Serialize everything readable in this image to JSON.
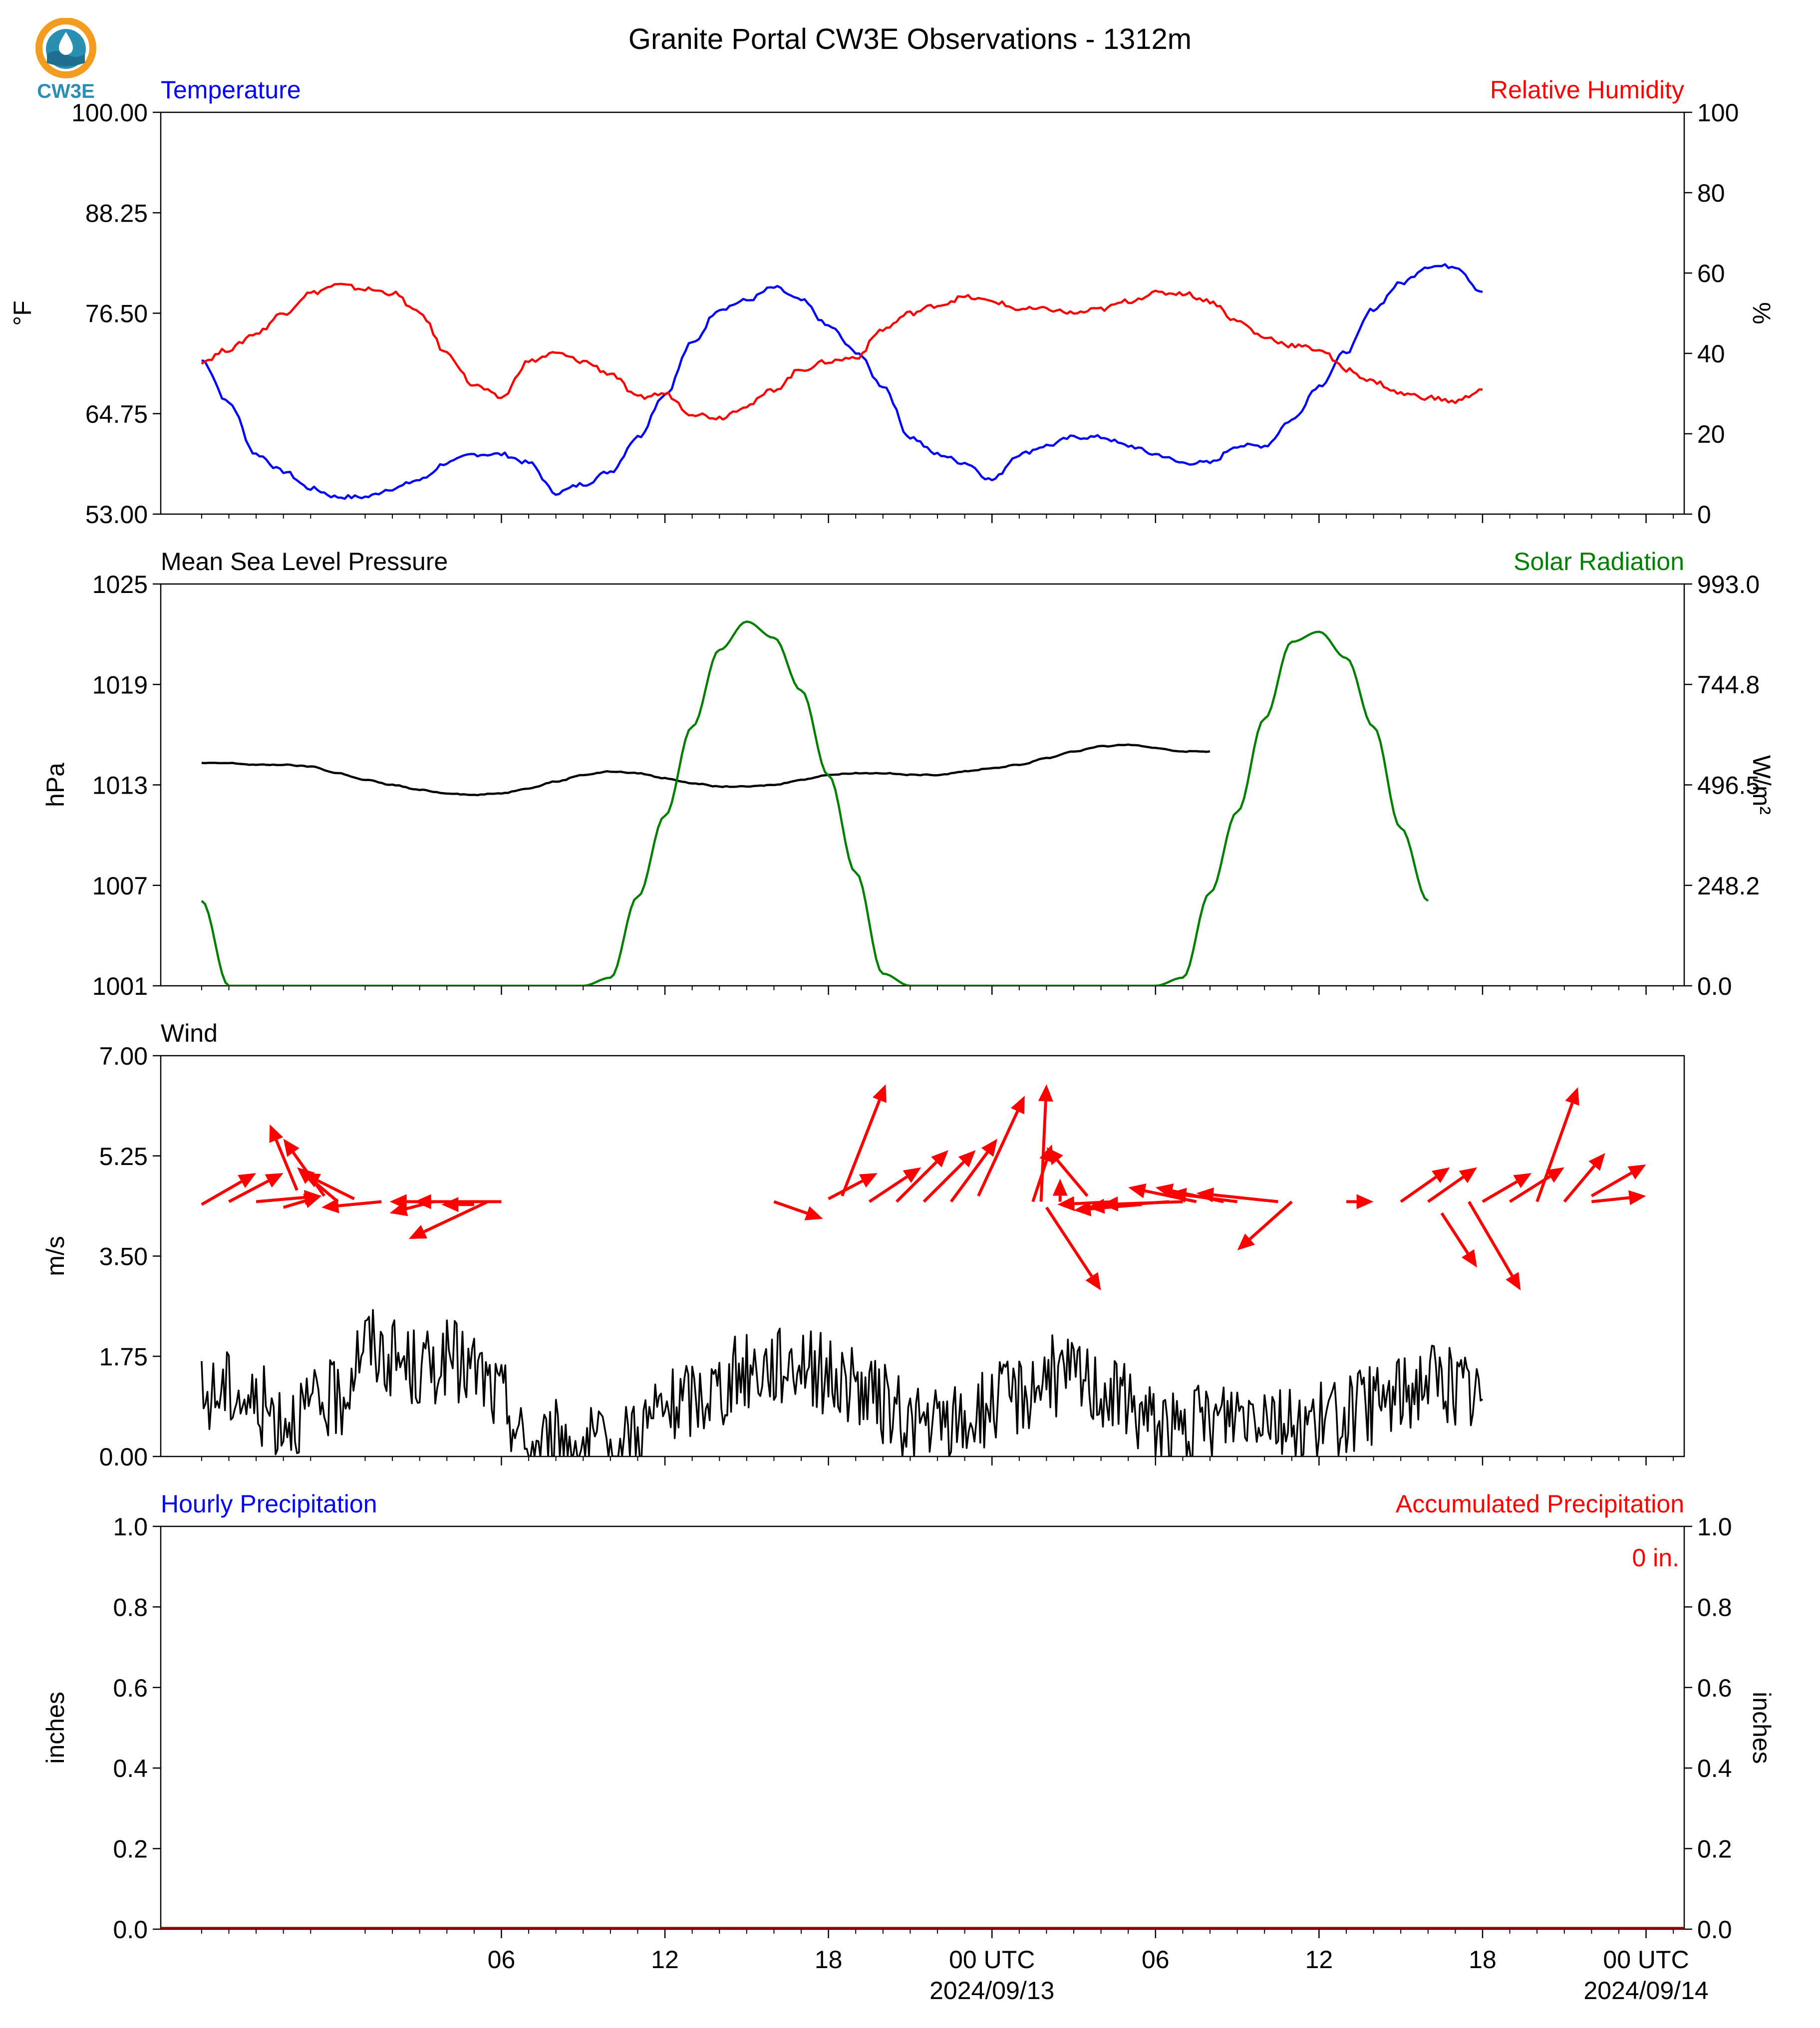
{
  "title": "Granite Portal CW3E Observations - 1312m",
  "logo": {
    "text": "CW3E",
    "colors": {
      "orange": "#f39c1f",
      "teal": "#2b8fb3",
      "dark": "#1f6f8f"
    }
  },
  "colors": {
    "blue": "#0000ff",
    "red": "#ff0000",
    "green": "#008000",
    "black": "#000000"
  },
  "x_axis": {
    "ticks": [
      "06",
      "12",
      "18",
      "00 UTC",
      "06",
      "12",
      "18",
      "00 UTC"
    ],
    "dates": [
      "2024/09/13",
      "2024/09/14"
    ]
  },
  "chart_data": [
    {
      "type": "line",
      "title_left": "Temperature",
      "title_right": "Relative Humidity",
      "ylabel_left": "°F",
      "ylabel_right": "%",
      "ylim_left": [
        53.0,
        100.0
      ],
      "ylim_right": [
        0,
        100
      ],
      "yticks_left": [
        "53.00",
        "64.75",
        "76.50",
        "88.25",
        "100.00"
      ],
      "yticks_right": [
        "0",
        "20",
        "40",
        "60",
        "80",
        "100"
      ],
      "x_hours": [
        -5,
        -4,
        -3,
        -2,
        -1,
        0,
        1,
        2,
        3,
        4,
        5,
        6,
        7,
        8,
        9,
        10,
        11,
        12,
        13,
        14,
        15,
        16,
        17,
        18,
        19,
        20,
        21,
        22,
        23,
        24,
        25,
        26,
        27,
        28,
        29,
        30,
        31,
        32,
        33,
        34,
        35,
        36,
        37,
        38,
        39,
        40,
        41,
        42,
        43,
        44,
        45,
        46,
        47,
        48
      ],
      "series": [
        {
          "name": "Temperature",
          "axis": "left",
          "color": "#0000ff",
          "values": [
            71,
            66,
            60,
            58,
            56,
            55,
            55,
            56,
            57,
            59,
            60,
            60,
            59,
            55.5,
            56.5,
            58,
            62,
            67,
            73,
            77,
            78,
            79.5,
            78,
            75,
            72,
            68,
            62,
            60,
            59,
            57,
            60,
            61,
            62,
            62,
            61,
            60,
            59,
            59,
            61,
            61,
            64,
            68,
            72,
            77,
            80,
            82,
            82,
            79
          ]
        },
        {
          "name": "Relative Humidity",
          "axis": "right",
          "color": "#ff0000",
          "values": [
            38,
            41,
            45,
            50,
            55,
            57,
            56,
            55,
            50,
            40,
            32,
            29,
            38,
            40,
            38,
            35,
            29,
            30,
            25,
            24,
            27,
            31,
            36,
            38,
            39,
            46,
            50,
            52,
            54,
            53,
            51,
            51,
            50,
            51,
            53,
            55,
            55,
            53,
            48,
            44,
            42,
            41,
            36,
            33,
            30,
            29,
            28,
            31
          ]
        }
      ]
    },
    {
      "type": "line",
      "title_left": "Mean Sea Level Pressure",
      "title_right": "Solar Radiation",
      "ylabel_left": "hPa",
      "ylabel_right": "W/m²",
      "ylim_left": [
        1001,
        1025
      ],
      "ylim_right": [
        0.0,
        993.0
      ],
      "yticks_left": [
        "1001",
        "1007",
        "1013",
        "1019",
        "1025"
      ],
      "yticks_right": [
        "0.0",
        "248.2",
        "496.5",
        "744.8",
        "993.0"
      ],
      "x_hours": [
        -5,
        -4,
        -3,
        -2,
        -1,
        0,
        1,
        2,
        3,
        4,
        5,
        6,
        7,
        8,
        9,
        10,
        11,
        12,
        13,
        14,
        15,
        16,
        17,
        18,
        19,
        20,
        21,
        22,
        23,
        24,
        25,
        26,
        27,
        28,
        29,
        30,
        31,
        32,
        33,
        34,
        35,
        36,
        37,
        38,
        39,
        40,
        41,
        42,
        43,
        44,
        45,
        46,
        47,
        48
      ],
      "series": [
        {
          "name": "Mean Sea Level Pressure",
          "axis": "left",
          "color": "#000000",
          "values": [
            1014.3,
            1014.3,
            1014.2,
            1014.2,
            1014.1,
            1013.7,
            1013.3,
            1013.0,
            1012.7,
            1012.5,
            1012.4,
            1012.5,
            1012.8,
            1013.2,
            1013.6,
            1013.8,
            1013.7,
            1013.4,
            1013.1,
            1012.9,
            1012.9,
            1013.0,
            1013.3,
            1013.6,
            1013.7,
            1013.7,
            1013.6,
            1013.6,
            1013.8,
            1014.0,
            1014.2,
            1014.6,
            1015.0,
            1015.3,
            1015.4,
            1015.2,
            1015.0,
            1015.0
          ]
        },
        {
          "name": "Solar Radiation",
          "axis": "right",
          "color": "#008000",
          "values": [
            210,
            0,
            0,
            0,
            0,
            0,
            0,
            0,
            0,
            0,
            0,
            0,
            0,
            0,
            0,
            20,
            220,
            420,
            640,
            830,
            900,
            860,
            730,
            520,
            280,
            30,
            0,
            0,
            0,
            0,
            0,
            0,
            0,
            0,
            0,
            0,
            20,
            230,
            430,
            660,
            850,
            875,
            810,
            640,
            390,
            210
          ]
        }
      ]
    },
    {
      "type": "line",
      "title_left": "Wind",
      "ylabel_left": "m/s",
      "ylim_left": [
        0.0,
        7.0
      ],
      "yticks_left": [
        "0.00",
        "1.75",
        "3.50",
        "5.25",
        "7.00"
      ],
      "x_hours": [
        -5,
        -4,
        -3,
        -2,
        -1,
        0,
        1,
        2,
        3,
        4,
        5,
        6,
        7,
        8,
        9,
        10,
        11,
        12,
        13,
        14,
        15,
        16,
        17,
        18,
        19,
        20,
        21,
        22,
        23,
        24,
        25,
        26,
        27,
        28,
        29,
        30,
        31,
        32,
        33,
        34,
        35,
        36,
        37,
        38,
        39,
        40,
        41,
        42,
        43,
        44,
        45,
        46,
        47,
        48
      ],
      "series": [
        {
          "name": "Wind speed",
          "axis": "left",
          "color": "#000000",
          "values": [
            1.0,
            1.2,
            0.9,
            0.7,
            0.8,
            1.0,
            2.0,
            1.7,
            1.5,
            1.7,
            1.5,
            1.0,
            0.1,
            0.3,
            0.2,
            0.0,
            0.5,
            0.8,
            1.0,
            1.2,
            1.5,
            1.6,
            1.7,
            1.4,
            1.2,
            0.9,
            0.6,
            0.5,
            0.6,
            0.9,
            1.1,
            1.4,
            1.4,
            1.2,
            0.9,
            0.6,
            0.4,
            0.6,
            0.8,
            0.9,
            0.5,
            0.6,
            0.7,
            0.9,
            1.1,
            1.4,
            1.2,
            1.0
          ]
        }
      ],
      "arrows": [
        [
          -5.0,
          4.4,
          -3.0,
          4.95
        ],
        [
          -4.0,
          4.45,
          -2.0,
          4.95
        ],
        [
          -3.0,
          4.45,
          -0.6,
          4.55
        ],
        [
          -2.0,
          4.35,
          -0.6,
          4.55
        ],
        [
          -1.5,
          4.65,
          -2.5,
          5.8
        ],
        [
          -0.5,
          4.55,
          -2.0,
          5.55
        ],
        [
          0.0,
          4.45,
          -1.5,
          5.05
        ],
        [
          0.6,
          4.5,
          -1.3,
          4.95
        ],
        [
          1.6,
          4.45,
          -0.6,
          4.35
        ],
        [
          3.5,
          4.45,
          1.9,
          4.25
        ],
        [
          4.5,
          4.45,
          2.8,
          4.45
        ],
        [
          5.5,
          4.45,
          2.6,
          3.8
        ],
        [
          6.0,
          4.45,
          1.9,
          4.45
        ],
        [
          5.0,
          4.4,
          3.8,
          4.4
        ],
        [
          16.0,
          4.45,
          17.8,
          4.15
        ],
        [
          18.0,
          4.5,
          19.8,
          4.95
        ],
        [
          18.5,
          4.55,
          20.1,
          6.5
        ],
        [
          19.5,
          4.45,
          21.4,
          5.05
        ],
        [
          20.5,
          4.45,
          22.4,
          5.35
        ],
        [
          21.5,
          4.45,
          23.4,
          5.35
        ],
        [
          22.5,
          4.45,
          24.2,
          5.55
        ],
        [
          23.5,
          4.55,
          25.2,
          6.3
        ],
        [
          25.8,
          4.45,
          26.0,
          6.5
        ],
        [
          25.5,
          4.45,
          26.2,
          5.45
        ],
        [
          26.5,
          4.45,
          26.5,
          4.85
        ],
        [
          27.5,
          4.55,
          26.0,
          5.4
        ],
        [
          26.0,
          4.35,
          28.0,
          2.9
        ],
        [
          28.5,
          4.45,
          26.4,
          4.4
        ],
        [
          29.5,
          4.4,
          27.0,
          4.3
        ],
        [
          30.5,
          4.45,
          27.5,
          4.35
        ],
        [
          31.0,
          4.45,
          28.0,
          4.4
        ],
        [
          31.5,
          4.45,
          29.0,
          4.7
        ],
        [
          32.5,
          4.45,
          30.0,
          4.7
        ],
        [
          33.0,
          4.45,
          30.5,
          4.6
        ],
        [
          34.5,
          4.45,
          31.5,
          4.6
        ],
        [
          35.0,
          4.45,
          33.0,
          3.6
        ],
        [
          37.0,
          4.45,
          38.0,
          4.45
        ],
        [
          39.0,
          4.45,
          40.8,
          5.05
        ],
        [
          40.0,
          4.45,
          41.8,
          5.05
        ],
        [
          42.0,
          4.45,
          43.8,
          4.95
        ],
        [
          40.5,
          4.25,
          41.8,
          3.3
        ],
        [
          41.5,
          4.45,
          43.4,
          2.9
        ],
        [
          43.0,
          4.45,
          45.0,
          5.05
        ],
        [
          44.0,
          4.45,
          45.5,
          6.45
        ],
        [
          45.0,
          4.45,
          46.5,
          5.3
        ],
        [
          46.0,
          4.45,
          48.0,
          4.55
        ],
        [
          46.0,
          4.55,
          48.0,
          5.1
        ]
      ]
    },
    {
      "type": "bar",
      "title_left": "Hourly Precipitation",
      "title_right": "Accumulated Precipitation",
      "ylabel_left": "inches",
      "ylabel_right": "inches",
      "ylim_left": [
        0.0,
        1.0
      ],
      "ylim_right": [
        0.0,
        1.0
      ],
      "yticks_left": [
        "0.0",
        "0.2",
        "0.4",
        "0.6",
        "0.8",
        "1.0"
      ],
      "yticks_right": [
        "0.0",
        "0.2",
        "0.4",
        "0.6",
        "0.8",
        "1.0"
      ],
      "annotation": "0 in.",
      "series": [
        {
          "name": "Hourly Precipitation",
          "axis": "left",
          "color": "#0000ff",
          "values": [
            0
          ]
        },
        {
          "name": "Accumulated Precipitation",
          "axis": "right",
          "color": "#ff0000",
          "values": [
            0
          ]
        }
      ]
    }
  ]
}
